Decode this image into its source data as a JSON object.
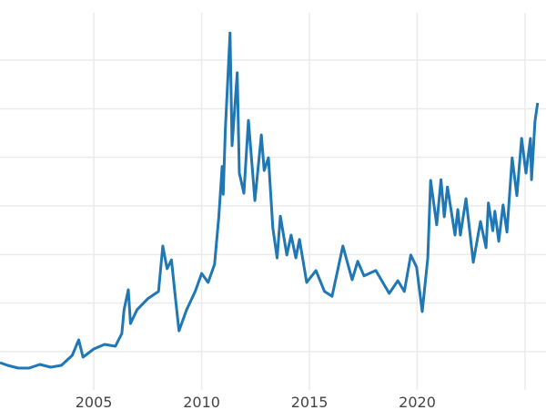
{
  "chart_data": {
    "type": "line",
    "title": "",
    "xlabel": "",
    "ylabel": "",
    "xlim": [
      2000.65,
      2025.97
    ],
    "ylim": [
      4.56,
      82.38
    ],
    "grid": true,
    "line_color": "#1f77b4",
    "grid_color": "#ebebeb",
    "x_gridlines": [
      2005,
      2010,
      2015,
      2020,
      2025
    ],
    "y_gridlines": [
      10,
      20,
      30,
      40,
      50,
      60,
      70
    ],
    "x_tick_labels": [
      {
        "value": 2005,
        "label": "2005"
      },
      {
        "value": 2010,
        "label": "2010"
      },
      {
        "value": 2015,
        "label": "2015"
      },
      {
        "value": 2020,
        "label": "2020"
      }
    ],
    "series": [
      {
        "x": [
          2000.65,
          2001.0,
          2001.5,
          2002.0,
          2002.5,
          2003.0,
          2003.5,
          2004.0,
          2004.3,
          2004.5,
          2005.0,
          2005.5,
          2006.0,
          2006.3,
          2006.4,
          2006.6,
          2006.7,
          2007.0,
          2007.5,
          2008.0,
          2008.2,
          2008.4,
          2008.6,
          2008.8,
          2008.95,
          2009.3,
          2009.7,
          2010.0,
          2010.3,
          2010.6,
          2010.8,
          2010.95,
          2011.0,
          2011.1,
          2011.32,
          2011.41,
          2011.65,
          2011.75,
          2011.96,
          2012.17,
          2012.47,
          2012.77,
          2012.9,
          2013.1,
          2013.3,
          2013.5,
          2013.65,
          2013.95,
          2014.15,
          2014.37,
          2014.54,
          2014.87,
          2015.3,
          2015.7,
          2016.05,
          2016.55,
          2016.98,
          2017.24,
          2017.53,
          2018.08,
          2018.7,
          2019.1,
          2019.4,
          2019.7,
          2019.97,
          2020.23,
          2020.49,
          2020.62,
          2020.9,
          2021.1,
          2021.25,
          2021.4,
          2021.75,
          2021.88,
          2022.0,
          2022.26,
          2022.6,
          2022.93,
          2023.19,
          2023.3,
          2023.5,
          2023.6,
          2023.78,
          2023.98,
          2024.16,
          2024.4,
          2024.62,
          2024.84,
          2025.04,
          2025.25,
          2025.3,
          2025.46,
          2025.58
        ],
        "y": [
          7.75,
          7.19,
          6.62,
          6.62,
          7.37,
          6.81,
          7.19,
          9.25,
          12.44,
          8.87,
          10.56,
          11.5,
          11.12,
          13.75,
          18.6,
          22.75,
          15.8,
          18.6,
          20.9,
          22.4,
          31.75,
          27.06,
          28.9,
          20.5,
          14.3,
          18.6,
          22.4,
          26.1,
          24.25,
          28.0,
          37.9,
          48.1,
          42.4,
          55.6,
          75.6,
          52.4,
          67.4,
          46.75,
          42.6,
          57.6,
          41.1,
          54.6,
          47.3,
          49.9,
          35.5,
          29.3,
          37.9,
          29.9,
          34.0,
          29.3,
          33.1,
          24.25,
          26.7,
          22.4,
          21.4,
          31.75,
          24.8,
          28.6,
          25.6,
          26.7,
          22.0,
          24.6,
          22.4,
          29.9,
          27.4,
          18.25,
          29.3,
          45.25,
          36.1,
          45.4,
          37.75,
          43.9,
          34.0,
          39.25,
          34.0,
          41.5,
          28.4,
          36.8,
          31.4,
          40.6,
          34.9,
          38.9,
          32.7,
          40.2,
          34.6,
          49.9,
          42.1,
          53.9,
          46.75,
          53.9,
          45.4,
          57.4,
          61.2
        ]
      }
    ]
  }
}
